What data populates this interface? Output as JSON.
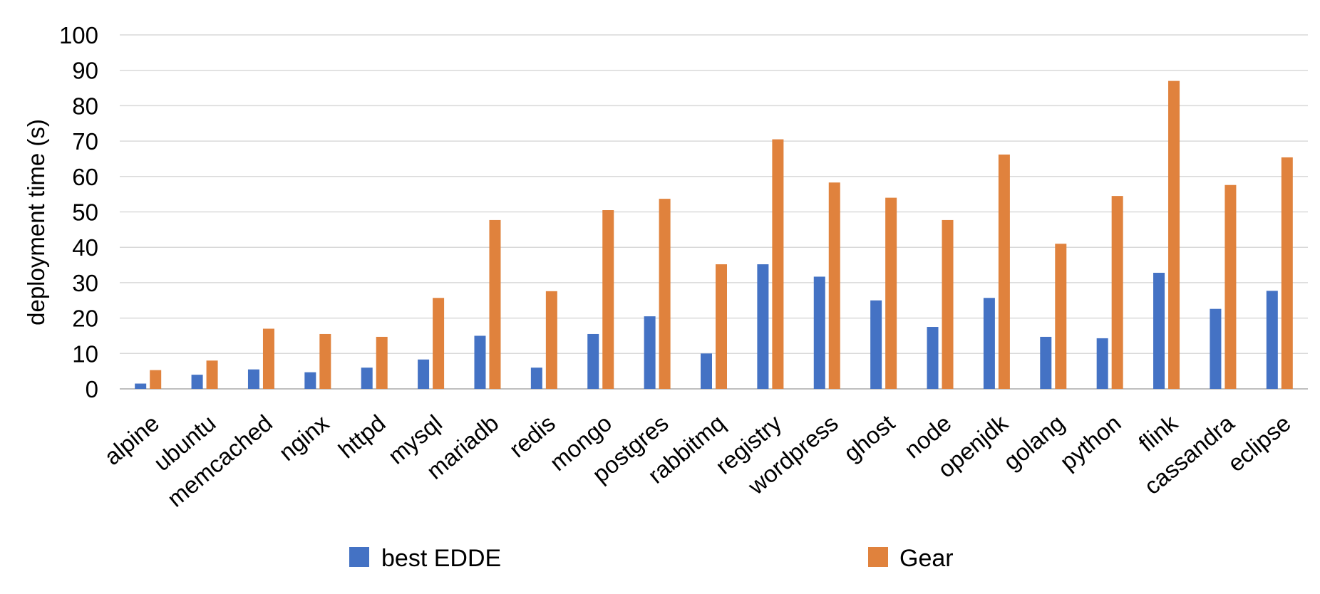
{
  "chart_data": {
    "type": "bar",
    "title": "",
    "xlabel": "",
    "ylabel": "deployment time (s)",
    "ylim": [
      0,
      100
    ],
    "yticks": [
      0,
      10,
      20,
      30,
      40,
      50,
      60,
      70,
      80,
      90,
      100
    ],
    "grid": "horizontal",
    "legend_position": "bottom",
    "categories": [
      "alpine",
      "ubuntu",
      "memcached",
      "nginx",
      "httpd",
      "mysql",
      "mariadb",
      "redis",
      "mongo",
      "postgres",
      "rabbitmq",
      "registry",
      "wordpress",
      "ghost",
      "node",
      "openjdk",
      "golang",
      "python",
      "flink",
      "cassandra",
      "eclipse"
    ],
    "series": [
      {
        "name": "best EDDE",
        "color": "#4472C4",
        "values": [
          1.5,
          4,
          5.5,
          4.7,
          6,
          8.3,
          15,
          6,
          15.5,
          20.5,
          10,
          35.2,
          31.7,
          25,
          17.5,
          25.7,
          14.7,
          14.3,
          32.8,
          22.6,
          27.7
        ]
      },
      {
        "name": "Gear",
        "color": "#E0823D",
        "values": [
          5.3,
          8,
          17,
          15.5,
          14.7,
          25.7,
          47.7,
          27.6,
          50.5,
          53.7,
          35.2,
          70.5,
          58.3,
          54,
          47.7,
          66.2,
          41,
          54.5,
          87,
          57.6,
          65.4
        ]
      }
    ]
  }
}
